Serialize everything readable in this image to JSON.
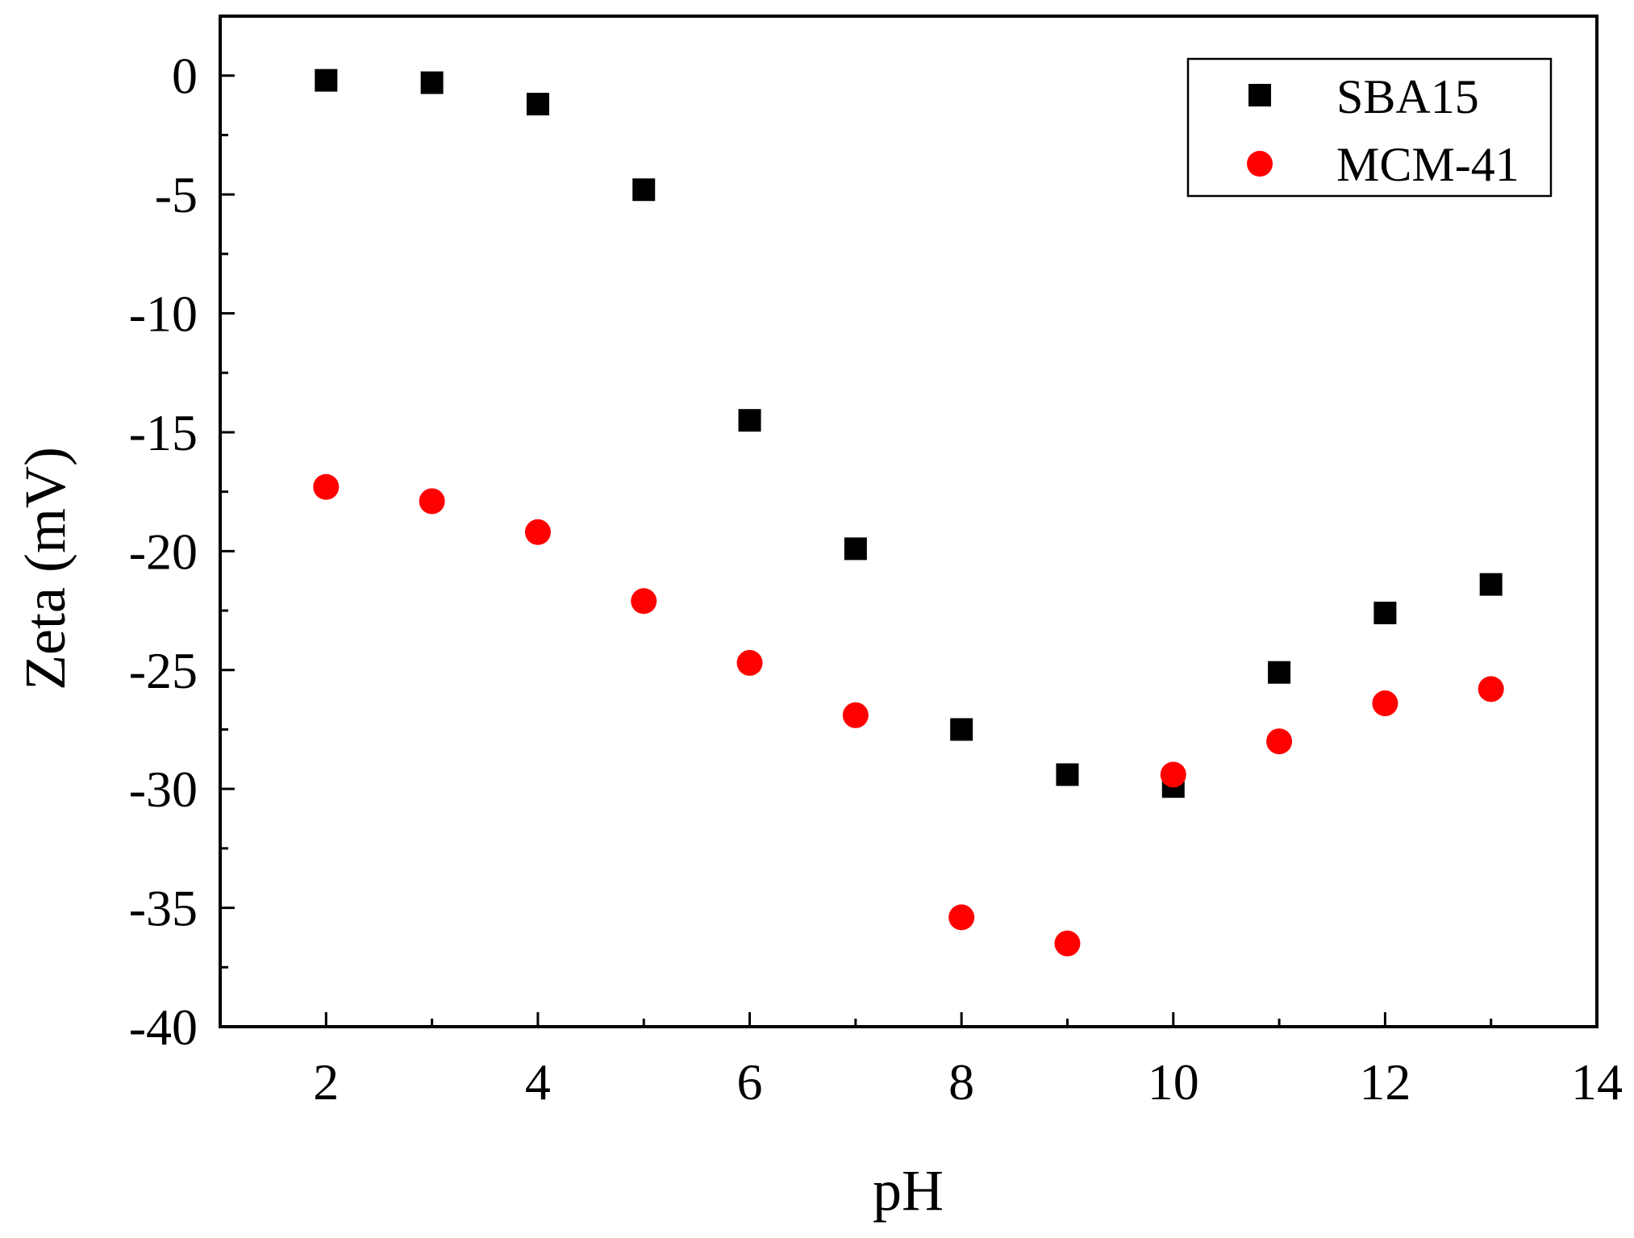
{
  "chart_data": {
    "type": "scatter",
    "title": "",
    "xlabel": "pH",
    "ylabel": "Zeta (mV)",
    "xlim": [
      1,
      14
    ],
    "ylim": [
      -40,
      2.5
    ],
    "x_ticks": [
      2,
      4,
      6,
      8,
      10,
      12,
      14
    ],
    "y_ticks": [
      0,
      -5,
      -10,
      -15,
      -20,
      -25,
      -30,
      -35,
      -40
    ],
    "grid": false,
    "legend_position": "top-right",
    "series": [
      {
        "name": "SBA15",
        "marker": "square",
        "color": "#000000",
        "x": [
          2,
          3,
          4,
          5,
          6,
          7,
          8,
          9,
          10,
          11,
          12,
          13
        ],
        "y": [
          -0.2,
          -0.3,
          -1.2,
          -4.8,
          -14.5,
          -19.9,
          -27.5,
          -29.4,
          -29.9,
          -25.1,
          -22.6,
          -21.4
        ]
      },
      {
        "name": "MCM-41",
        "marker": "circle",
        "color": "#ff0000",
        "x": [
          2,
          3,
          4,
          5,
          6,
          7,
          8,
          9,
          10,
          11,
          12,
          13
        ],
        "y": [
          -17.3,
          -17.9,
          -19.2,
          -22.1,
          -24.7,
          -26.9,
          -35.4,
          -36.5,
          -29.4,
          -28.0,
          -26.4,
          -25.8
        ]
      }
    ]
  }
}
